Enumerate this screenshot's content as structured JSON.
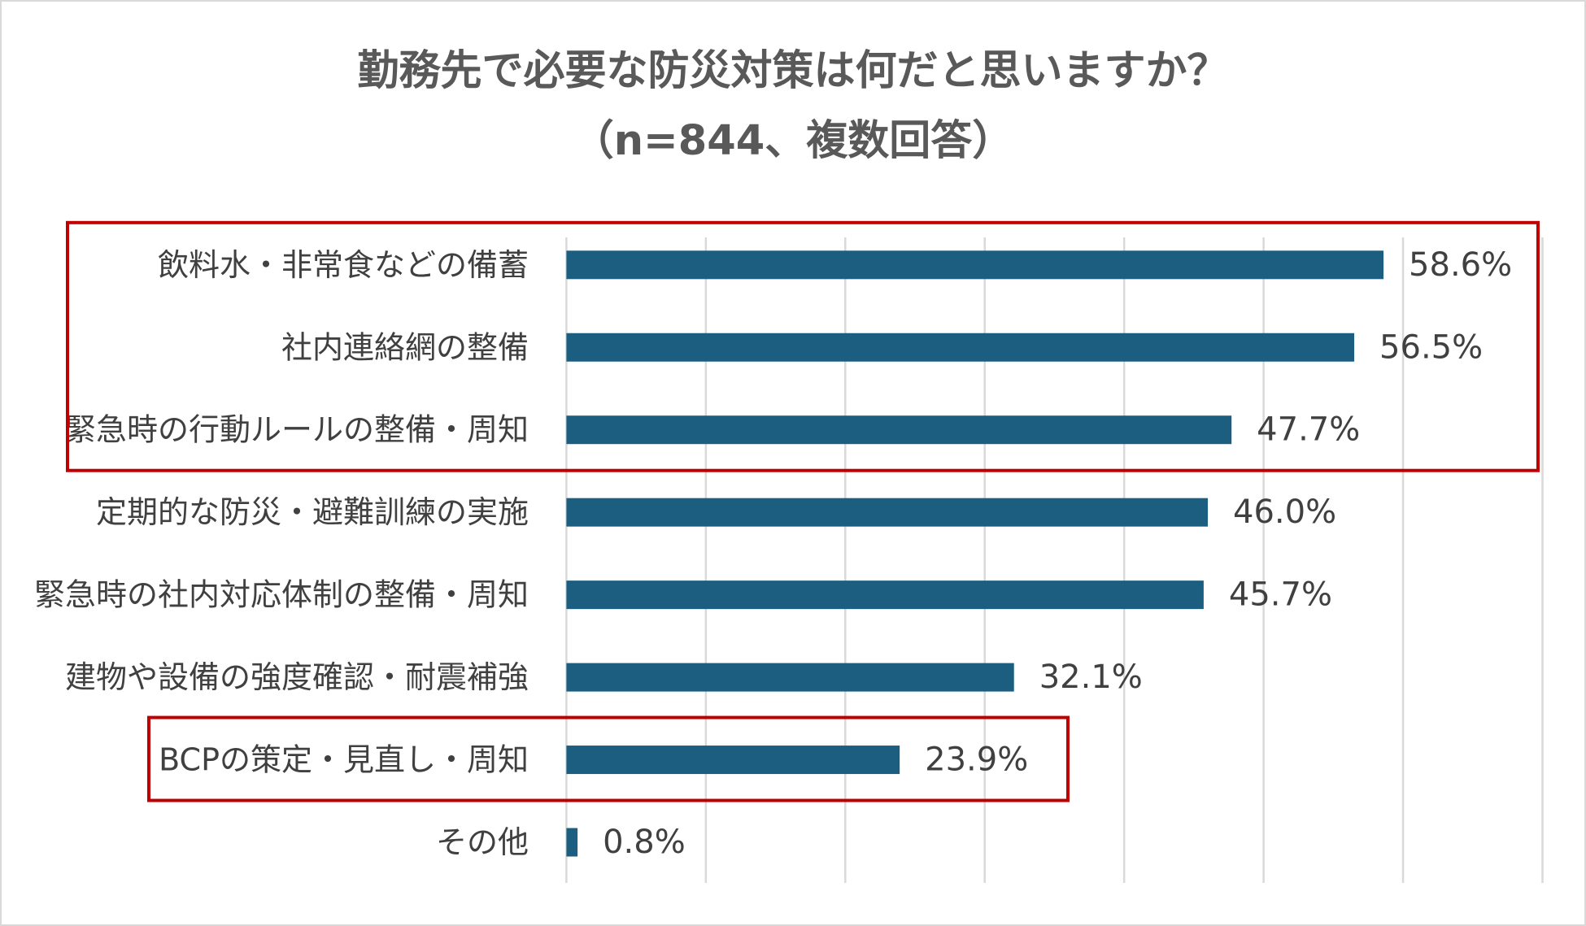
{
  "chart_data": {
    "type": "bar",
    "orientation": "horizontal",
    "title": "勤務先で必要な防災対策は何だと思いますか？",
    "subtitle": "（n=844、複数回答）",
    "categories": [
      "飲料水・非常食などの備蓄",
      "社内連絡網の整備",
      "緊急時の行動ルールの整備・周知",
      "定期的な防災・避難訓練の実施",
      "緊急時の社内対応体制の整備・周知",
      "建物や設備の強度確認・耐震補強",
      "BCPの策定・見直し・周知",
      "その他"
    ],
    "values": [
      58.6,
      56.5,
      47.7,
      46.0,
      45.7,
      32.1,
      23.9,
      0.8
    ],
    "value_labels": [
      "58.6%",
      "56.5%",
      "47.7%",
      "46.0%",
      "45.7%",
      "32.1%",
      "23.9%",
      "0.8%"
    ],
    "xlim": [
      0,
      70
    ],
    "grid": true,
    "grid_step": 10,
    "bar_color": "#1B5E80",
    "highlight_color": "#C00000",
    "highlight_groups": [
      [
        0,
        1,
        2
      ],
      [
        6
      ]
    ]
  }
}
